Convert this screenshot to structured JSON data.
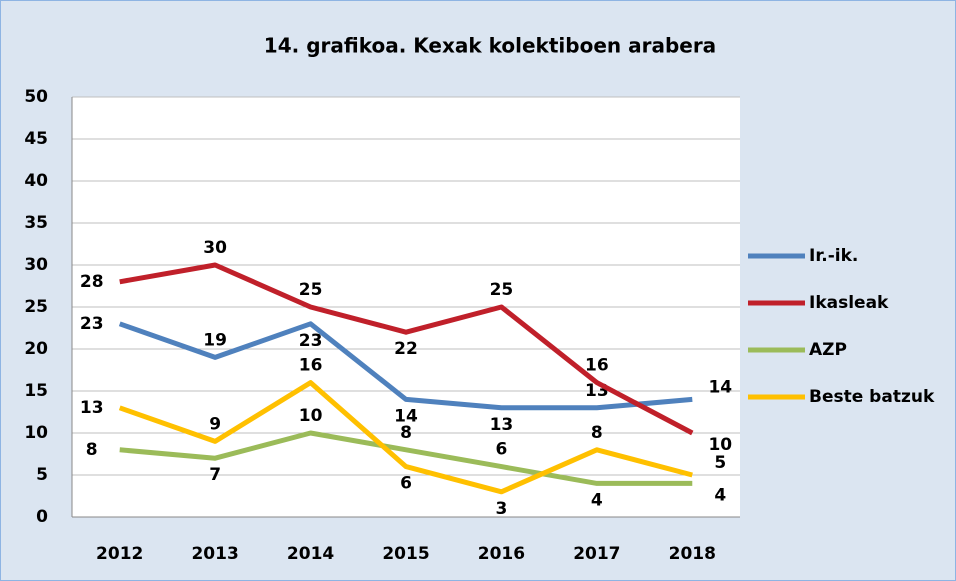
{
  "chart_data": {
    "type": "line",
    "title": "14. grafikoa. Kexak kolektiboen arabera",
    "categories": [
      "2012",
      "2013",
      "2014",
      "2015",
      "2016",
      "2017",
      "2018"
    ],
    "series": [
      {
        "name": "Ir.-ik.",
        "color": "#4f81bd",
        "values": [
          23,
          19,
          23,
          14,
          13,
          13,
          14
        ]
      },
      {
        "name": "Ikasleak",
        "color": "#c0202a",
        "values": [
          28,
          30,
          25,
          22,
          25,
          16,
          10
        ]
      },
      {
        "name": "AZP",
        "color": "#9bbb59",
        "values": [
          8,
          7,
          10,
          8,
          6,
          4,
          4
        ]
      },
      {
        "name": "Beste batzuk",
        "color": "#ffc000",
        "values": [
          13,
          9,
          16,
          6,
          3,
          8,
          5
        ]
      }
    ],
    "ylim": [
      0,
      50
    ],
    "yticks": [
      0,
      5,
      10,
      15,
      20,
      25,
      30,
      35,
      40,
      45,
      50
    ],
    "grid": true,
    "legend": "right"
  }
}
